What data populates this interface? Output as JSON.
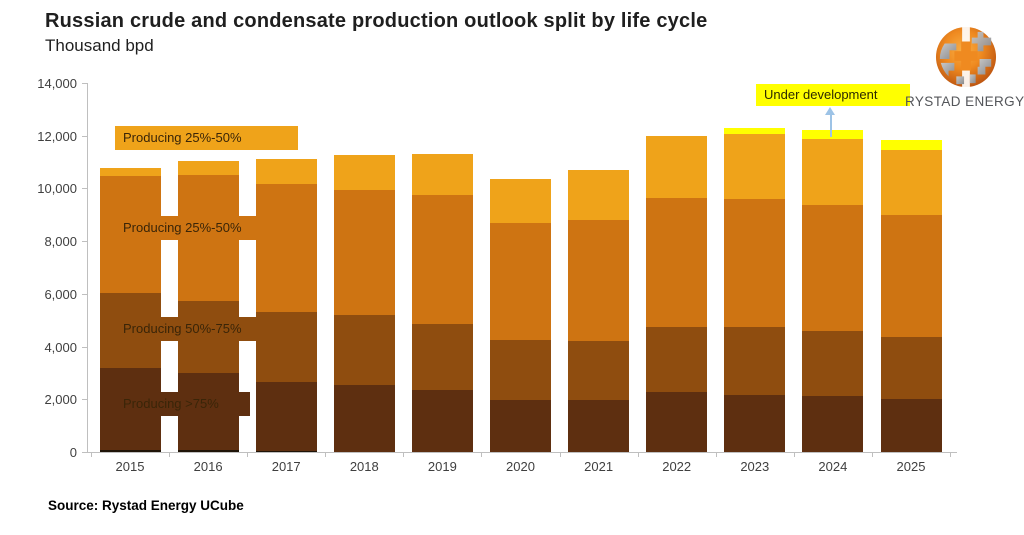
{
  "header": {
    "title": "Russian crude and condensate production outlook split by life cycle",
    "subtitle": "Thousand bpd"
  },
  "source_note": "Source: Rystad Energy UCube",
  "logo": {
    "text": "RYSTAD ENERGY"
  },
  "colors": {
    "producing_gt75": "#5E2F10",
    "producing_50_75": "#8F4D0F",
    "producing_25_50": "#CE7412",
    "producing_25_50_top": "#EFA31A",
    "under_development": "#FFFF00",
    "base_black": "#1F1408",
    "axis": "#bfbfbf",
    "callout_arrow": "#9DC3E6"
  },
  "chart_data": {
    "type": "bar",
    "subtype": "stacked",
    "title": "Russian crude and condensate production outlook split by life cycle",
    "ylabel": "Thousand bpd",
    "ylim": [
      0,
      14000
    ],
    "ytick_interval": 2000,
    "y_tick_labels": [
      "0",
      "2,000",
      "4,000",
      "6,000",
      "8,000",
      "10,000",
      "12,000",
      "14,000"
    ],
    "grid": "off",
    "categories": [
      "2015",
      "2016",
      "2017",
      "2018",
      "2019",
      "2020",
      "2021",
      "2022",
      "2023",
      "2024",
      "2025"
    ],
    "series": [
      {
        "name": "",
        "color": "#1F1408",
        "values": [
          90,
          90,
          40,
          0,
          0,
          0,
          0,
          0,
          0,
          0,
          0
        ]
      },
      {
        "name": "Producing >75%",
        "color": "#5E2F10",
        "values": [
          3090,
          2900,
          2600,
          2540,
          2350,
          1970,
          1980,
          2280,
          2180,
          2130,
          2000
        ]
      },
      {
        "name": "Producing 50%-75%",
        "color": "#8F4D0F",
        "values": [
          2850,
          2750,
          2660,
          2660,
          2510,
          2290,
          2220,
          2480,
          2550,
          2450,
          2370
        ]
      },
      {
        "name": "Producing 25%-50%",
        "color": "#CE7412",
        "values": [
          4430,
          4760,
          4860,
          4750,
          4880,
          4440,
          4590,
          4870,
          4870,
          4790,
          4630
        ]
      },
      {
        "name": "Producing 25%-50%",
        "color": "#EFA31A",
        "values": [
          320,
          550,
          950,
          1330,
          1580,
          1670,
          1900,
          2360,
          2460,
          2520,
          2470
        ]
      },
      {
        "name": "Under development",
        "color": "#FFFF00",
        "values": [
          0,
          0,
          0,
          0,
          0,
          0,
          0,
          0,
          220,
          340,
          380
        ]
      }
    ],
    "totals": [
      10780,
      11050,
      11110,
      11280,
      11320,
      10370,
      10690,
      11990,
      12280,
      12230,
      11850
    ],
    "annotations": [
      {
        "text": "Producing 25%-50%",
        "bg": "#EFA31A"
      },
      {
        "text": "Producing 25%-50%",
        "bg": "#CE7412"
      },
      {
        "text": "Producing 50%-75%",
        "bg": "#8F4D0F"
      },
      {
        "text": "Producing >75%",
        "bg": "#5E2F10"
      },
      {
        "text": "Under development",
        "bg": "#FFFF00"
      }
    ]
  }
}
